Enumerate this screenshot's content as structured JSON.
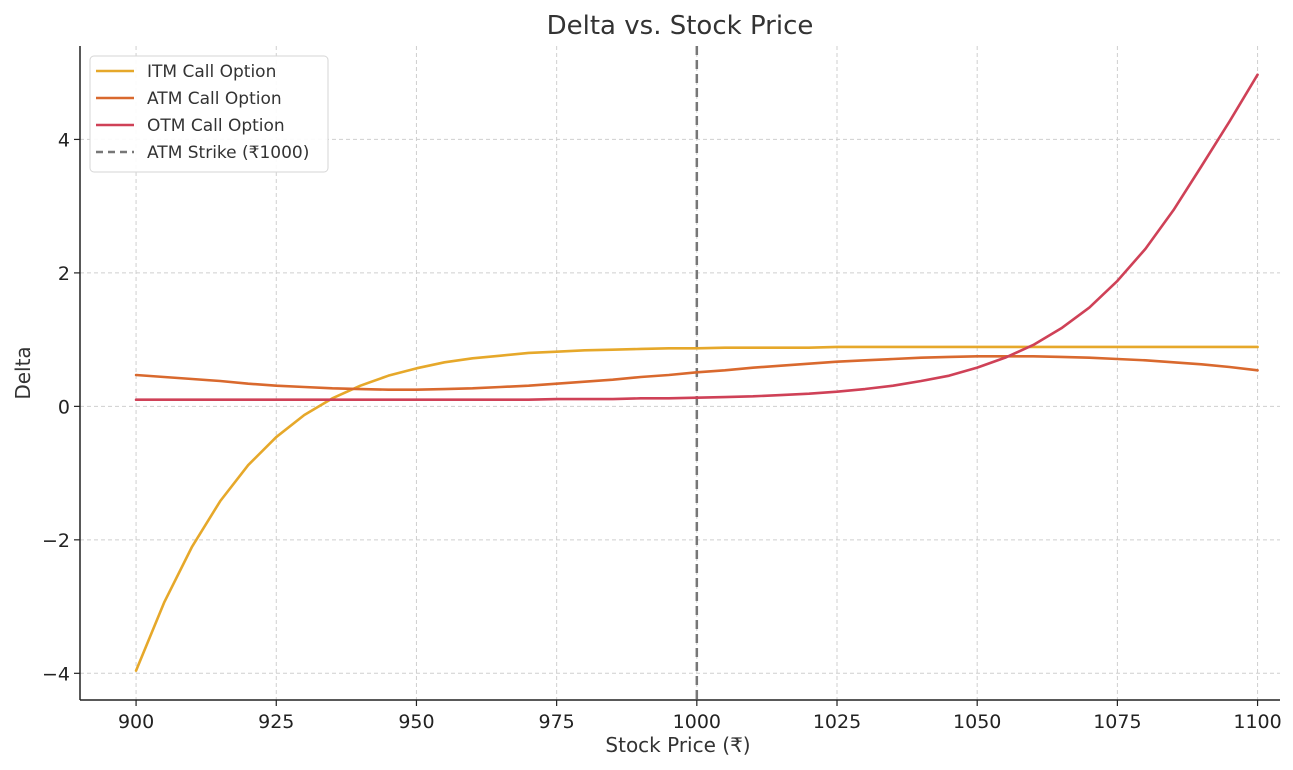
{
  "chart_data": {
    "type": "line",
    "title": "Delta vs. Stock Price",
    "xlabel": "Stock Price (₹)",
    "ylabel": "Delta",
    "xlim": [
      890,
      1104
    ],
    "ylim": [
      -4.4,
      5.4
    ],
    "x_ticks": [
      900,
      925,
      950,
      975,
      1000,
      1025,
      1050,
      1075,
      1100
    ],
    "x_tick_labels": [
      "900",
      "925",
      "950",
      "975",
      "1000",
      "1025",
      "1050",
      "1075",
      "1100"
    ],
    "y_ticks": [
      -4,
      -2,
      0,
      2,
      4
    ],
    "y_tick_labels": [
      "−4",
      "−2",
      "0",
      "2",
      "4"
    ],
    "grid": true,
    "legend_position": "top-left",
    "x": [
      900,
      905,
      910,
      915,
      920,
      925,
      930,
      935,
      940,
      945,
      950,
      955,
      960,
      965,
      970,
      975,
      980,
      985,
      990,
      995,
      1000,
      1005,
      1010,
      1015,
      1020,
      1025,
      1030,
      1035,
      1040,
      1045,
      1050,
      1055,
      1060,
      1065,
      1070,
      1075,
      1080,
      1085,
      1090,
      1095,
      1100
    ],
    "series": [
      {
        "name": "ITM Call Option",
        "color": "#e6a82a",
        "dash": "solid",
        "values": [
          -3.96,
          -2.94,
          -2.1,
          -1.42,
          -0.88,
          -0.46,
          -0.13,
          0.12,
          0.31,
          0.46,
          0.57,
          0.66,
          0.72,
          0.76,
          0.8,
          0.82,
          0.84,
          0.85,
          0.86,
          0.87,
          0.87,
          0.88,
          0.88,
          0.88,
          0.88,
          0.89,
          0.89,
          0.89,
          0.89,
          0.89,
          0.89,
          0.89,
          0.89,
          0.89,
          0.89,
          0.89,
          0.89,
          0.89,
          0.89,
          0.89,
          0.89
        ]
      },
      {
        "name": "ATM Call Option",
        "color": "#d9692e",
        "dash": "solid",
        "values": [
          0.47,
          0.44,
          0.41,
          0.38,
          0.34,
          0.31,
          0.29,
          0.27,
          0.26,
          0.25,
          0.25,
          0.26,
          0.27,
          0.29,
          0.31,
          0.34,
          0.37,
          0.4,
          0.44,
          0.47,
          0.51,
          0.54,
          0.58,
          0.61,
          0.64,
          0.67,
          0.69,
          0.71,
          0.73,
          0.74,
          0.75,
          0.75,
          0.75,
          0.74,
          0.73,
          0.71,
          0.69,
          0.66,
          0.63,
          0.59,
          0.54
        ]
      },
      {
        "name": "OTM Call Option",
        "color": "#cf4157",
        "dash": "solid",
        "values": [
          0.1,
          0.1,
          0.1,
          0.1,
          0.1,
          0.1,
          0.1,
          0.1,
          0.1,
          0.1,
          0.1,
          0.1,
          0.1,
          0.1,
          0.1,
          0.11,
          0.11,
          0.11,
          0.12,
          0.12,
          0.13,
          0.14,
          0.15,
          0.17,
          0.19,
          0.22,
          0.26,
          0.31,
          0.38,
          0.46,
          0.58,
          0.73,
          0.92,
          1.17,
          1.48,
          1.88,
          2.36,
          2.94,
          3.6,
          4.27,
          4.97
        ]
      }
    ],
    "reference_lines": [
      {
        "name": "ATM Strike (₹1000)",
        "orientation": "vertical",
        "x": 1000,
        "color": "#777777",
        "dash": "dashed"
      }
    ]
  }
}
